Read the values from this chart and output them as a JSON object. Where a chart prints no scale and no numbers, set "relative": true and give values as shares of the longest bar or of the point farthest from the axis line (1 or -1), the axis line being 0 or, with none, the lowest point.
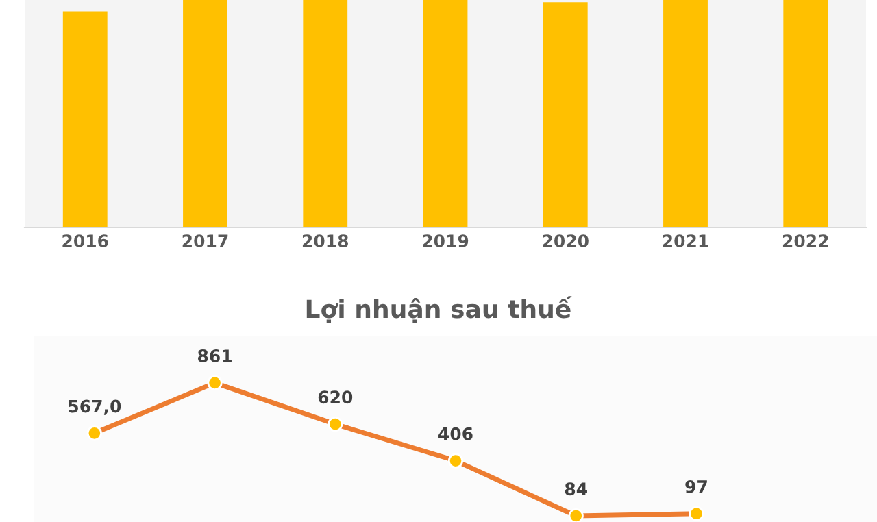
{
  "chart_data": [
    {
      "type": "bar",
      "relative": true,
      "categories": [
        "2016",
        "2017",
        "2018",
        "2019",
        "2020",
        "2021",
        "2022"
      ],
      "values": [
        0.95,
        1.0,
        1.0,
        1.0,
        0.99,
        1.0,
        1.0
      ],
      "color": "#ffc000",
      "grid": false,
      "legend": false
    },
    {
      "type": "line",
      "title": "Lợi nhuận sau thuế",
      "categories": [
        null,
        null,
        null,
        null,
        null,
        null,
        null
      ],
      "values": [
        567.0,
        861,
        620,
        406,
        84,
        97,
        null
      ],
      "value_labels": [
        "567,0",
        "861",
        "620",
        "406",
        "84",
        "97",
        null
      ],
      "color": "#ed7d31",
      "marker": "circle",
      "line_style": "solid",
      "grid": false,
      "legend": false
    }
  ]
}
